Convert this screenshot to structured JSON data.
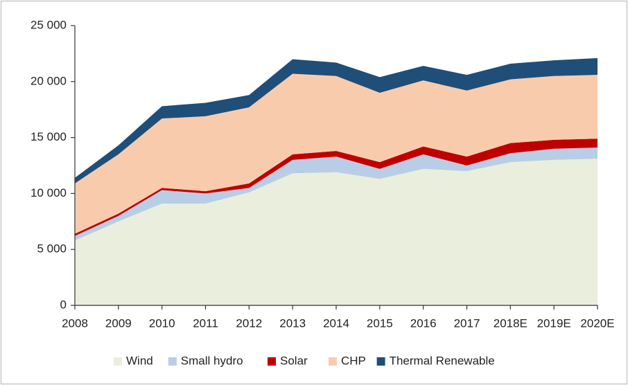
{
  "chart_data": {
    "type": "stacked_area",
    "categories": [
      "2008",
      "2009",
      "2010",
      "2011",
      "2012",
      "2013",
      "2014",
      "2015",
      "2016",
      "2017",
      "2018E",
      "2019E",
      "2020E"
    ],
    "series": [
      {
        "name": "Wind",
        "color": "#e9efdc",
        "values": [
          5800,
          7500,
          9100,
          9100,
          10100,
          11800,
          11900,
          11300,
          12200,
          12000,
          12800,
          13000,
          13100
        ]
      },
      {
        "name": "Small hydro",
        "color": "#b9cde6",
        "values": [
          400,
          500,
          1200,
          900,
          400,
          1200,
          1400,
          900,
          1300,
          500,
          800,
          1000,
          1000
        ]
      },
      {
        "name": "Solar",
        "color": "#c00000",
        "values": [
          200,
          200,
          200,
          200,
          400,
          500,
          500,
          600,
          700,
          800,
          900,
          800,
          800
        ]
      },
      {
        "name": "CHP",
        "color": "#f9cbad",
        "values": [
          4500,
          5300,
          6200,
          6700,
          6800,
          7200,
          6700,
          6200,
          5900,
          5900,
          5700,
          5700,
          5700
        ]
      },
      {
        "name": "Thermal Renewable",
        "color": "#1f4e79",
        "values": [
          500,
          800,
          1100,
          1200,
          1100,
          1300,
          1200,
          1400,
          1300,
          1400,
          1400,
          1400,
          1500
        ]
      }
    ],
    "ylim": [
      0,
      25000
    ],
    "yticks": [
      0,
      {
        "value": 5000,
        "label": "5 000"
      },
      {
        "value": 10000,
        "label": "10 000"
      },
      {
        "value": 15000,
        "label": "15 000"
      },
      {
        "value": 20000,
        "label": "20 000"
      },
      {
        "value": 25000,
        "label": "25 000"
      }
    ],
    "grid": false,
    "legend": "bottom"
  }
}
